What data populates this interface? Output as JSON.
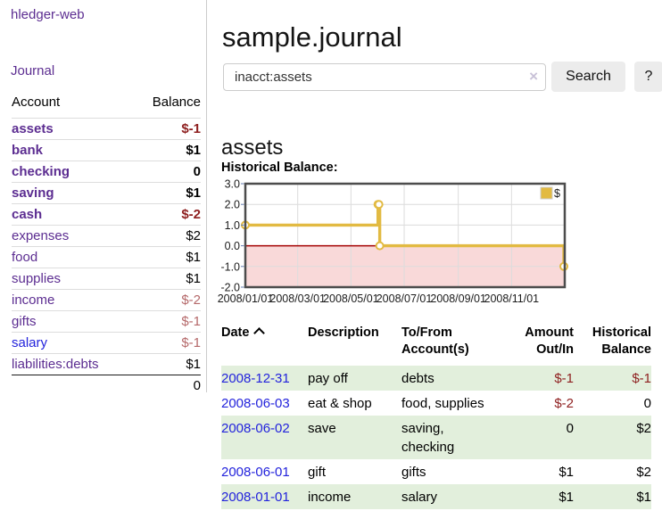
{
  "colors": {
    "purple_link": "#5c2d91",
    "blue_link": "#2323dc",
    "negative_strong": "#8e1f1f",
    "negative_soft": "#b5696a",
    "row_green": "#e2efdc",
    "chart_line": "#e2ba42"
  },
  "sidebar": {
    "brand": "hledger-web",
    "nav": {
      "journal": "Journal"
    },
    "accounts": {
      "headers": {
        "account": "Account",
        "balance": "Balance"
      },
      "rows": [
        {
          "name": "assets",
          "balance": "$-1"
        },
        {
          "name": "bank",
          "balance": "$1"
        },
        {
          "name": "checking",
          "balance": "0"
        },
        {
          "name": "saving",
          "balance": "$1"
        },
        {
          "name": "cash",
          "balance": "$-2"
        },
        {
          "name": "expenses",
          "balance": "$2"
        },
        {
          "name": "food",
          "balance": "$1"
        },
        {
          "name": "supplies",
          "balance": "$1"
        },
        {
          "name": "income",
          "balance": "$-2"
        },
        {
          "name": "gifts",
          "balance": "$-1"
        },
        {
          "name": "salary",
          "balance": "$-1"
        },
        {
          "name": "liabilities:debts",
          "balance": "$1"
        }
      ],
      "total": "0"
    }
  },
  "header": {
    "title": "sample.journal"
  },
  "search": {
    "value": "inacct:assets",
    "clear_icon": "×",
    "search_button": "Search",
    "help_button": "?"
  },
  "account_page": {
    "heading": "assets",
    "chart_label": "Historical Balance:"
  },
  "chart_data": {
    "type": "line",
    "step": true,
    "title": "Historical Balance",
    "series": [
      {
        "name": "$",
        "color": "#e2ba42",
        "points": [
          [
            "2008-01-01",
            1
          ],
          [
            "2008-06-01",
            2
          ],
          [
            "2008-06-02",
            2
          ],
          [
            "2008-06-03",
            0
          ],
          [
            "2008-12-31",
            -1
          ]
        ]
      }
    ],
    "x_range": [
      "2008-01-01",
      "2009-01-01"
    ],
    "y_range": [
      -2,
      3
    ],
    "x_ticks": [
      {
        "date": "2008-01-01",
        "label": "2008/01/01"
      },
      {
        "date": "2008-03-01",
        "label": "2008/03/01"
      },
      {
        "date": "2008-05-01",
        "label": "2008/05/01"
      },
      {
        "date": "2008-07-01",
        "label": "2008/07/01"
      },
      {
        "date": "2008-09-01",
        "label": "2008/09/01"
      },
      {
        "date": "2008-11-01",
        "label": "2008/11/01"
      }
    ],
    "y_ticks": [
      {
        "v": 3,
        "label": "3.0"
      },
      {
        "v": 2,
        "label": "2.0"
      },
      {
        "v": 1,
        "label": "1.0"
      },
      {
        "v": 0,
        "label": "0.0"
      },
      {
        "v": -1,
        "label": "-1.0"
      },
      {
        "v": -2,
        "label": "-2.0"
      }
    ],
    "grid": true,
    "negative_fill": "#f9d9d9",
    "zero_line_color": "#a40000",
    "legend": {
      "label": "$",
      "position": "top-right"
    }
  },
  "register": {
    "headers": {
      "date": "Date",
      "description": "Description",
      "accounts": "To/From\nAccount(s)",
      "amount": "Amount\nOut/In",
      "balance": "Historical\nBalance"
    },
    "rows": [
      {
        "date": "2008-12-31",
        "description": "pay off",
        "accounts": "debts",
        "amount": "$-1",
        "balance": "$-1"
      },
      {
        "date": "2008-06-03",
        "description": "eat & shop",
        "accounts": "food, supplies",
        "amount": "$-2",
        "balance": "0"
      },
      {
        "date": "2008-06-02",
        "description": "save",
        "accounts": "saving,\nchecking",
        "amount": "0",
        "balance": "$2"
      },
      {
        "date": "2008-06-01",
        "description": "gift",
        "accounts": "gifts",
        "amount": "$1",
        "balance": "$2"
      },
      {
        "date": "2008-01-01",
        "description": "income",
        "accounts": "salary",
        "amount": "$1",
        "balance": "$1"
      }
    ]
  }
}
